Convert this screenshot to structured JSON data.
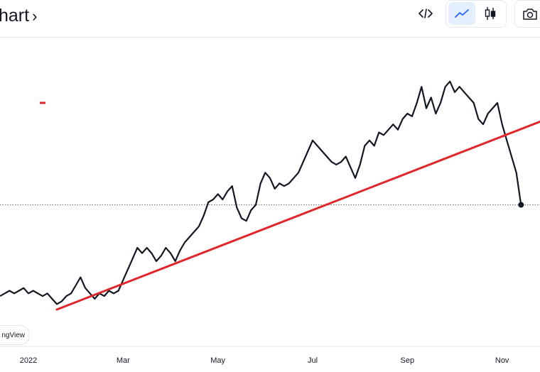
{
  "header": {
    "title": "hart",
    "title_chevron": "›"
  },
  "toolbar": {
    "embed_icon": "code-icon",
    "line_chart_icon": "line-chart-icon",
    "candles_icon": "candlestick-icon",
    "camera_icon": "camera-icon"
  },
  "watermark": {
    "text": "ngView"
  },
  "colors": {
    "price_line": "#131722",
    "trend_line": "#e0262b",
    "active_tool": "#2962ff"
  },
  "chart_data": {
    "type": "line",
    "title": "",
    "xlabel": "",
    "ylabel": "",
    "x_ticks": [
      "2022",
      "Mar",
      "May",
      "Jul",
      "Sep",
      "Nov"
    ],
    "x_tick_positions": [
      0.4,
      2.4,
      4.4,
      6.4,
      8.4,
      10.4
    ],
    "xlim": [
      -0.2,
      11.2
    ],
    "ylim": [
      0,
      100
    ],
    "grid": false,
    "series": [
      {
        "name": "",
        "x": [
          -0.2,
          -0.1,
          0.0,
          0.1,
          0.2,
          0.3,
          0.4,
          0.5,
          0.6,
          0.7,
          0.8,
          0.9,
          1.0,
          1.1,
          1.2,
          1.3,
          1.4,
          1.5,
          1.6,
          1.7,
          1.8,
          1.9,
          2.0,
          2.1,
          2.2,
          2.3,
          2.4,
          2.5,
          2.6,
          2.7,
          2.8,
          2.9,
          3.0,
          3.1,
          3.2,
          3.3,
          3.4,
          3.5,
          3.6,
          3.7,
          3.8,
          3.9,
          4.0,
          4.1,
          4.2,
          4.3,
          4.4,
          4.5,
          4.6,
          4.7,
          4.8,
          4.9,
          5.0,
          5.1,
          5.2,
          5.3,
          5.4,
          5.5,
          5.6,
          5.7,
          5.8,
          5.9,
          6.0,
          6.1,
          6.2,
          6.3,
          6.4,
          6.5,
          6.6,
          6.7,
          6.8,
          6.9,
          7.0,
          7.1,
          7.2,
          7.3,
          7.4,
          7.5,
          7.6,
          7.7,
          7.8,
          7.9,
          8.0,
          8.1,
          8.2,
          8.3,
          8.4,
          8.5,
          8.6,
          8.7,
          8.8,
          8.9,
          9.0,
          9.1,
          9.2,
          9.3,
          9.4,
          9.5,
          9.6,
          9.7,
          9.8,
          9.9,
          10.0,
          10.1,
          10.2,
          10.3,
          10.4,
          10.5,
          10.6,
          10.7,
          10.8
        ],
        "values": [
          14,
          15,
          16,
          15,
          16,
          17,
          15,
          16,
          15,
          14,
          15,
          13,
          11,
          12,
          14,
          15,
          18,
          21,
          17,
          15,
          13,
          15,
          14,
          16,
          15,
          16,
          20,
          24,
          28,
          32,
          30,
          32,
          30,
          27,
          29,
          32,
          30,
          27,
          31,
          34,
          36,
          38,
          40,
          44,
          49,
          50,
          52,
          50,
          53,
          55,
          47,
          43,
          42,
          46,
          48,
          56,
          60,
          58,
          54,
          56,
          55,
          56,
          58,
          60,
          64,
          68,
          72,
          70,
          68,
          66,
          64,
          63,
          64,
          66,
          62,
          58,
          63,
          70,
          72,
          70,
          75,
          74,
          76,
          78,
          76,
          80,
          82,
          81,
          86,
          92,
          84,
          88,
          82,
          86,
          92,
          94,
          90,
          92,
          90,
          88,
          86,
          80,
          78,
          82,
          84,
          86,
          78,
          72,
          66,
          60,
          48
        ]
      },
      {
        "name": "",
        "x": [
          1.0,
          11.2
        ],
        "values": [
          9,
          79
        ]
      }
    ],
    "last_point": {
      "x": 10.8,
      "value": 48
    },
    "reference_line": 48,
    "annotations": [
      {
        "type": "marker",
        "x": 0.7,
        "value": 86,
        "color": "#e0262b"
      }
    ]
  }
}
